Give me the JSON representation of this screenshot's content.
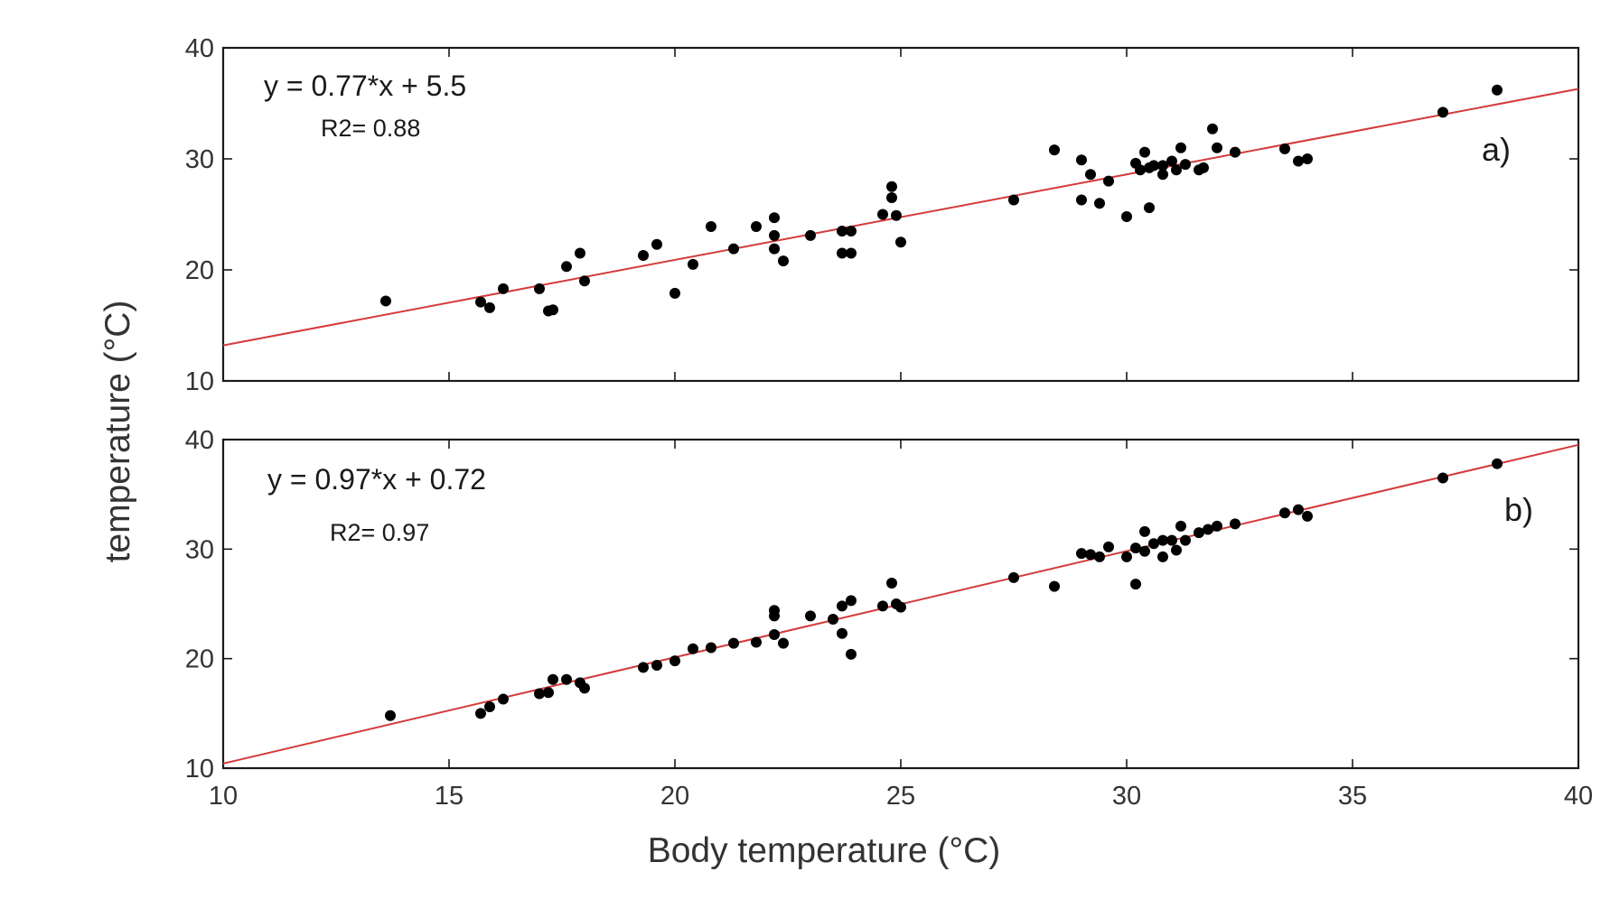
{
  "chart_data": [
    {
      "type": "scatter",
      "panel_label": "a)",
      "equation": "y = 0.77*x + 5.5",
      "r2": "R2= 0.88",
      "fit": {
        "slope": 0.77,
        "intercept": 5.5
      },
      "line_color": "#d43a3a",
      "point_color": "#000000",
      "xlim": [
        10,
        40
      ],
      "ylim": [
        10,
        40
      ],
      "yticks": [
        10,
        20,
        30,
        40
      ],
      "ytick_labels": [
        "10",
        "20",
        "30",
        "40"
      ],
      "points": [
        [
          13.6,
          17.2
        ],
        [
          15.7,
          17.1
        ],
        [
          15.9,
          16.6
        ],
        [
          16.2,
          18.3
        ],
        [
          17.0,
          18.3
        ],
        [
          17.2,
          16.3
        ],
        [
          17.3,
          16.4
        ],
        [
          17.6,
          20.3
        ],
        [
          17.9,
          21.5
        ],
        [
          18.0,
          19.0
        ],
        [
          19.3,
          21.3
        ],
        [
          19.6,
          22.3
        ],
        [
          20.0,
          17.9
        ],
        [
          20.4,
          20.5
        ],
        [
          20.8,
          23.9
        ],
        [
          21.3,
          21.9
        ],
        [
          21.8,
          23.9
        ],
        [
          22.2,
          24.7
        ],
        [
          22.2,
          23.1
        ],
        [
          22.2,
          21.9
        ],
        [
          22.4,
          20.8
        ],
        [
          23.0,
          23.1
        ],
        [
          23.7,
          23.5
        ],
        [
          23.7,
          21.5
        ],
        [
          23.9,
          23.5
        ],
        [
          23.9,
          21.5
        ],
        [
          24.6,
          25.0
        ],
        [
          24.8,
          27.5
        ],
        [
          24.8,
          26.5
        ],
        [
          24.9,
          24.9
        ],
        [
          25.0,
          22.5
        ],
        [
          27.5,
          26.3
        ],
        [
          28.4,
          30.8
        ],
        [
          29.0,
          26.3
        ],
        [
          29.0,
          29.9
        ],
        [
          29.2,
          28.6
        ],
        [
          29.4,
          26.0
        ],
        [
          29.6,
          28.0
        ],
        [
          30.0,
          24.8
        ],
        [
          30.2,
          29.6
        ],
        [
          30.3,
          29.0
        ],
        [
          30.4,
          30.6
        ],
        [
          30.5,
          29.2
        ],
        [
          30.5,
          25.6
        ],
        [
          30.6,
          29.4
        ],
        [
          30.8,
          28.6
        ],
        [
          30.8,
          29.4
        ],
        [
          31.0,
          29.8
        ],
        [
          31.1,
          29.0
        ],
        [
          31.2,
          31.0
        ],
        [
          31.3,
          29.5
        ],
        [
          31.6,
          29.0
        ],
        [
          31.7,
          29.2
        ],
        [
          31.9,
          32.7
        ],
        [
          32.0,
          31.0
        ],
        [
          32.4,
          30.6
        ],
        [
          33.5,
          30.9
        ],
        [
          33.8,
          29.8
        ],
        [
          34.0,
          30.0
        ],
        [
          37.0,
          34.2
        ],
        [
          38.2,
          36.2
        ]
      ]
    },
    {
      "type": "scatter",
      "panel_label": "b)",
      "equation": "y = 0.97*x + 0.72",
      "r2": "R2= 0.97",
      "fit": {
        "slope": 0.97,
        "intercept": 0.72
      },
      "line_color": "#d43a3a",
      "point_color": "#000000",
      "xlim": [
        10,
        40
      ],
      "ylim": [
        10,
        40
      ],
      "xticks": [
        10,
        15,
        20,
        25,
        30,
        35,
        40
      ],
      "xtick_labels": [
        "10",
        "15",
        "20",
        "25",
        "30",
        "35",
        "40"
      ],
      "yticks": [
        10,
        20,
        30,
        40
      ],
      "ytick_labels": [
        "10",
        "20",
        "30",
        "40"
      ],
      "points": [
        [
          13.7,
          14.8
        ],
        [
          15.7,
          15.0
        ],
        [
          15.9,
          15.6
        ],
        [
          16.2,
          16.3
        ],
        [
          17.0,
          16.8
        ],
        [
          17.2,
          16.9
        ],
        [
          17.3,
          18.1
        ],
        [
          17.6,
          18.1
        ],
        [
          17.9,
          17.8
        ],
        [
          18.0,
          17.3
        ],
        [
          19.3,
          19.2
        ],
        [
          19.6,
          19.4
        ],
        [
          20.0,
          19.8
        ],
        [
          20.4,
          20.9
        ],
        [
          20.8,
          21.0
        ],
        [
          21.3,
          21.4
        ],
        [
          21.8,
          21.5
        ],
        [
          22.2,
          24.4
        ],
        [
          22.2,
          23.9
        ],
        [
          22.2,
          22.2
        ],
        [
          22.4,
          21.4
        ],
        [
          23.0,
          23.9
        ],
        [
          23.5,
          23.6
        ],
        [
          23.7,
          24.8
        ],
        [
          23.7,
          22.3
        ],
        [
          23.9,
          25.3
        ],
        [
          23.9,
          20.4
        ],
        [
          24.6,
          24.8
        ],
        [
          24.8,
          26.9
        ],
        [
          24.9,
          25.0
        ],
        [
          25.0,
          24.7
        ],
        [
          27.5,
          27.4
        ],
        [
          28.4,
          26.6
        ],
        [
          29.0,
          29.6
        ],
        [
          29.2,
          29.5
        ],
        [
          29.4,
          29.3
        ],
        [
          29.6,
          30.2
        ],
        [
          30.0,
          29.3
        ],
        [
          30.2,
          30.1
        ],
        [
          30.2,
          26.8
        ],
        [
          30.4,
          29.8
        ],
        [
          30.4,
          31.6
        ],
        [
          30.6,
          30.5
        ],
        [
          30.8,
          29.3
        ],
        [
          30.8,
          30.8
        ],
        [
          31.0,
          30.8
        ],
        [
          31.1,
          29.9
        ],
        [
          31.2,
          32.1
        ],
        [
          31.3,
          30.8
        ],
        [
          31.6,
          31.5
        ],
        [
          31.8,
          31.8
        ],
        [
          32.0,
          32.1
        ],
        [
          32.4,
          32.3
        ],
        [
          33.5,
          33.3
        ],
        [
          33.8,
          33.6
        ],
        [
          34.0,
          33.0
        ],
        [
          37.0,
          36.5
        ],
        [
          38.2,
          37.8
        ]
      ]
    }
  ],
  "xlabel": "Body temperature (°C)",
  "ylabel": "temperature (°C)"
}
